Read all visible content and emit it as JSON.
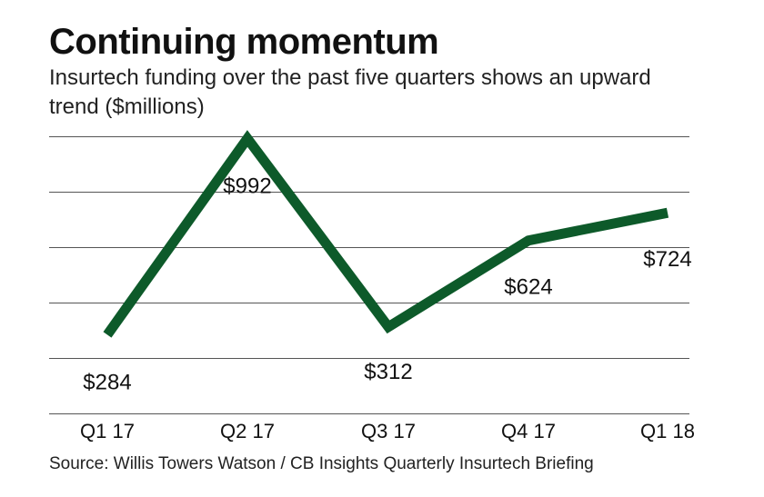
{
  "chart_data": {
    "type": "line",
    "title": "Continuing momentum",
    "subtitle": "Insurtech funding over the past five quarters shows an upward trend ($millions)",
    "categories": [
      "Q1 17",
      "Q2 17",
      "Q3 17",
      "Q4 17",
      "Q1 18"
    ],
    "series": [
      {
        "name": "Insurtech funding",
        "values": [
          284,
          992,
          312,
          624,
          724
        ],
        "labels": [
          "$284",
          "$992",
          "$312",
          "$624",
          "$724"
        ]
      }
    ],
    "xlabel": "",
    "ylabel": "",
    "ylim": [
      0,
      1000
    ],
    "grid": true,
    "legend": "none",
    "source": "Source: Willis Towers Watson / CB Insights Quarterly Insurtech Briefing",
    "colors": {
      "line": "#0d5a2a",
      "grid": "#555555",
      "text": "#111111"
    }
  }
}
